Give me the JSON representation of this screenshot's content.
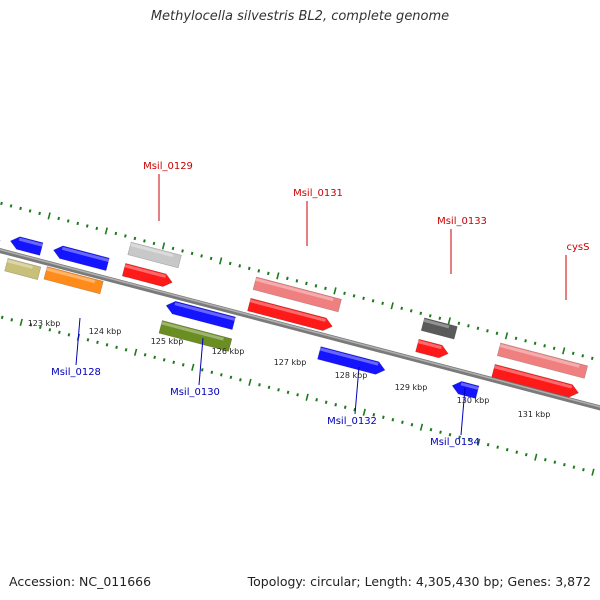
{
  "title": "Methylocella silvestris BL2, complete genome",
  "footer": {
    "accession": "Accession: NC_011666",
    "summary": "Topology: circular; Length: 4,305,430 bp; Genes: 3,872"
  },
  "colors": {
    "backbone": "#8c8c8c",
    "tick": "#1d7a1d",
    "label_forward": "#cc0000",
    "label_reverse": "#0000bb",
    "red": "#ff1a1a",
    "pink": "#f08080",
    "blue": "#1414ff",
    "orange": "#ff8c1a",
    "olive": "#6b8e23",
    "khaki": "#c8bf78",
    "grey": "#5a5a5a",
    "lightgrey": "#c8c8c8",
    "teal": "#30e0b0"
  },
  "kbp_labels": [
    "123 kbp",
    "124 kbp",
    "125 kbp",
    "126 kbp",
    "127 kbp",
    "128 kbp",
    "129 kbp",
    "130 kbp",
    "131 kbp"
  ],
  "gene_labels_forward": [
    "Msil_0129",
    "Msil_0131",
    "Msil_0133",
    "cysS"
  ],
  "gene_labels_reverse": [
    "Msil_0128",
    "Msil_0130",
    "Msil_0132",
    "Msil_0134"
  ]
}
